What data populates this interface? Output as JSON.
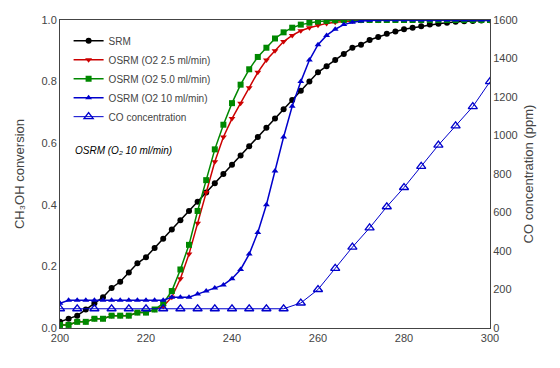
{
  "chart_data": {
    "type": "line",
    "ylabel": "CH₃OH conversion",
    "y2label": "CO concentration (ppm)",
    "xlim": [
      200,
      300
    ],
    "xticks": [
      200,
      220,
      240,
      260,
      280,
      300
    ],
    "ylim": [
      0.0,
      1.0
    ],
    "yticks": [
      {
        "value": 0,
        "label": "0.0"
      },
      0.2,
      0.4,
      0.6,
      0.8,
      {
        "value": 1,
        "label": "1.0"
      }
    ],
    "y2lim": [
      0,
      1600
    ],
    "y2ticks": [
      0,
      200,
      400,
      600,
      800,
      1000,
      1200,
      1400,
      1600
    ],
    "grid": false,
    "legend": "upper left",
    "annotations": [
      "OSRM (O₂ 10 ml/min)"
    ],
    "series": [
      {
        "name": "SRM",
        "color": "#000000",
        "marker": "circle",
        "x": [
          200,
          202,
          204,
          206,
          208,
          210,
          212,
          214,
          216,
          218,
          220,
          222,
          224,
          226,
          228,
          230,
          232,
          234,
          236,
          238,
          240,
          242,
          244,
          246,
          248,
          250,
          252,
          254,
          256,
          258,
          260,
          262,
          264,
          266,
          268,
          270,
          272,
          274,
          276,
          278,
          280,
          282,
          284,
          286,
          288,
          290,
          292,
          294,
          296,
          298,
          300
        ],
        "values": [
          0.02,
          0.03,
          0.04,
          0.06,
          0.08,
          0.1,
          0.13,
          0.15,
          0.18,
          0.21,
          0.23,
          0.26,
          0.29,
          0.32,
          0.35,
          0.38,
          0.41,
          0.44,
          0.47,
          0.5,
          0.53,
          0.56,
          0.59,
          0.62,
          0.65,
          0.68,
          0.71,
          0.74,
          0.77,
          0.8,
          0.83,
          0.85,
          0.87,
          0.89,
          0.91,
          0.92,
          0.935,
          0.945,
          0.955,
          0.963,
          0.97,
          0.975,
          0.98,
          0.985,
          0.988,
          0.991,
          0.994,
          0.996,
          0.997,
          0.998,
          0.999
        ]
      },
      {
        "name": "OSRM (O2 2.5 ml/min)",
        "color": "#cc0000",
        "marker": "triangle-down",
        "x": [
          200,
          202,
          204,
          206,
          208,
          210,
          212,
          214,
          216,
          218,
          220,
          222,
          224,
          226,
          228,
          230,
          232,
          234,
          236,
          238,
          240,
          242,
          244,
          246,
          248,
          250,
          252,
          254,
          256,
          258,
          260,
          262,
          264,
          266,
          268,
          270,
          272,
          274,
          276,
          278,
          280,
          282,
          284,
          286,
          288,
          290,
          292,
          294,
          296,
          298,
          300
        ],
        "values": [
          0.01,
          0.01,
          0.02,
          0.02,
          0.03,
          0.03,
          0.04,
          0.04,
          0.04,
          0.05,
          0.05,
          0.06,
          0.07,
          0.1,
          0.16,
          0.24,
          0.34,
          0.44,
          0.54,
          0.62,
          0.68,
          0.73,
          0.78,
          0.83,
          0.87,
          0.9,
          0.93,
          0.95,
          0.965,
          0.975,
          0.983,
          0.989,
          0.993,
          0.996,
          0.997,
          0.998,
          0.999,
          0.999,
          1.0,
          1.0,
          1.0,
          1.0,
          1.0,
          1.0,
          1.0,
          1.0,
          1.0,
          1.0,
          1.0,
          1.0,
          1.0
        ]
      },
      {
        "name": "OSRM (O2 5.0 ml/min)",
        "color": "#008800",
        "marker": "square",
        "x": [
          200,
          202,
          204,
          206,
          208,
          210,
          212,
          214,
          216,
          218,
          220,
          222,
          224,
          226,
          228,
          230,
          232,
          234,
          236,
          238,
          240,
          242,
          244,
          246,
          248,
          250,
          252,
          254,
          256,
          258,
          260,
          262,
          264,
          266,
          268,
          270,
          272,
          274,
          276,
          278,
          280,
          282,
          284,
          286,
          288,
          290,
          292,
          294,
          296,
          298,
          300
        ],
        "values": [
          0.01,
          0.01,
          0.02,
          0.02,
          0.03,
          0.03,
          0.04,
          0.04,
          0.04,
          0.05,
          0.05,
          0.06,
          0.08,
          0.12,
          0.19,
          0.27,
          0.38,
          0.48,
          0.58,
          0.66,
          0.73,
          0.79,
          0.84,
          0.88,
          0.91,
          0.94,
          0.96,
          0.975,
          0.985,
          0.991,
          0.995,
          0.997,
          0.999,
          1.0,
          1.0,
          1.0,
          1.0,
          1.0,
          1.0,
          1.0,
          1.0,
          1.0,
          1.0,
          1.0,
          1.0,
          1.0,
          1.0,
          1.0,
          1.0,
          1.0,
          1.0
        ]
      },
      {
        "name": "OSRM (O2 10 ml/min)",
        "color": "#0000cc",
        "marker": "triangle-up",
        "x": [
          200,
          202,
          204,
          206,
          208,
          210,
          212,
          214,
          216,
          218,
          220,
          222,
          224,
          226,
          228,
          230,
          232,
          234,
          236,
          238,
          240,
          242,
          244,
          246,
          248,
          250,
          252,
          254,
          256,
          258,
          260,
          262,
          264,
          266,
          268,
          270,
          272,
          274,
          276,
          278,
          280,
          282,
          284,
          286,
          288,
          290,
          292,
          294,
          296,
          298,
          300
        ],
        "values": [
          0.08,
          0.09,
          0.09,
          0.09,
          0.09,
          0.09,
          0.09,
          0.09,
          0.09,
          0.09,
          0.09,
          0.09,
          0.09,
          0.1,
          0.1,
          0.1,
          0.11,
          0.12,
          0.13,
          0.14,
          0.16,
          0.19,
          0.24,
          0.31,
          0.4,
          0.51,
          0.62,
          0.72,
          0.8,
          0.87,
          0.92,
          0.95,
          0.97,
          0.985,
          0.993,
          0.997,
          0.999,
          1.0,
          1.0,
          1.0,
          1.0,
          1.0,
          1.0,
          1.0,
          1.0,
          1.0,
          1.0,
          1.0,
          1.0,
          1.0,
          1.0
        ]
      },
      {
        "name": "CO concentration",
        "color": "#0000cc",
        "marker": "triangle-up-open",
        "axis": "y2",
        "x": [
          200,
          204,
          208,
          212,
          216,
          220,
          224,
          228,
          232,
          236,
          240,
          244,
          248,
          252,
          256,
          260,
          264,
          268,
          272,
          276,
          280,
          284,
          288,
          292,
          296,
          300
        ],
        "values": [
          100,
          100,
          100,
          100,
          100,
          100,
          100,
          100,
          100,
          100,
          100,
          100,
          100,
          100,
          130,
          200,
          310,
          420,
          520,
          630,
          730,
          840,
          950,
          1050,
          1150,
          1280
        ]
      }
    ]
  }
}
